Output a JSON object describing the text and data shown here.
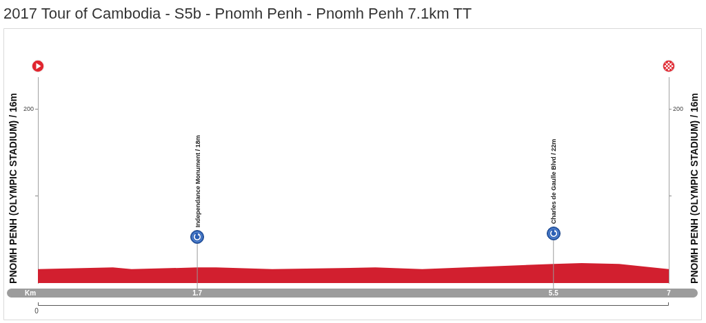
{
  "chart_data": {
    "type": "area",
    "title": "2017 Tour of Cambodia - S5b - Pnomh Penh - Pnomh Penh 7.1km TT",
    "xlabel": "Km",
    "ylabel": "PNOMH PENH (OLYMPIC STADIUM) / 16m",
    "y2label": "PNOMH PENH (OLYMPIC STADIUM) / 16m",
    "x": [
      0,
      0.8,
      1.0,
      1.7,
      1.9,
      2.5,
      3.1,
      3.6,
      4.1,
      5.5,
      5.8,
      6.2,
      6.73
    ],
    "values": [
      16,
      18,
      16,
      18,
      18,
      16,
      17,
      18,
      16,
      22,
      23,
      22,
      16
    ],
    "color": "#d21f2f",
    "xlim": [
      0,
      6.73
    ],
    "xticks": [
      1.7,
      5.5,
      {
        "value": 6.73,
        "label": "7"
      }
    ],
    "ylim": [
      0,
      237
    ],
    "yticks": [
      {
        "value": 100,
        "label": null
      },
      200
    ],
    "ref_lines": [
      {
        "axis": "x",
        "value": 1.7,
        "label": "Independance Monument / 18m",
        "color": "#9a9a9a"
      },
      {
        "axis": "x",
        "value": 5.5,
        "label": "Charles de Gaulle Blvd / 22m",
        "color": "#9a9a9a"
      }
    ],
    "annotations": [
      "0",
      "200"
    ]
  }
}
